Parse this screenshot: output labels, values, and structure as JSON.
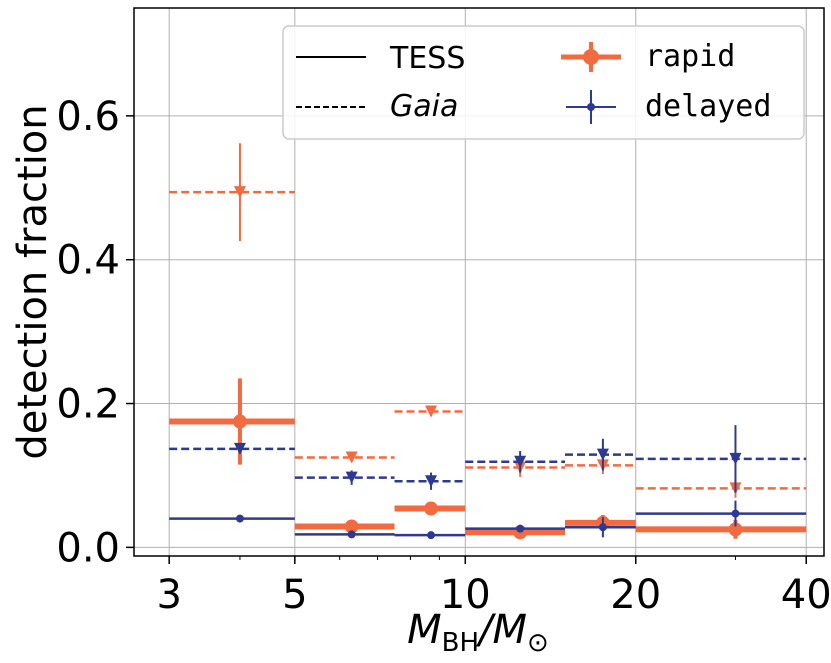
{
  "colors": {
    "rapid": "#f26a40",
    "delayed": "#2e3a8f",
    "grid": "#b0b0b0",
    "axis": "#000000"
  },
  "chart_data": {
    "type": "step-histogram",
    "xscale": "log",
    "xlim": [
      2.6,
      43
    ],
    "ylim": [
      -0.012,
      0.75
    ],
    "xlabel_main": "M",
    "xlabel_sub1": "BH",
    "xlabel_slash": "/M",
    "xlabel_sub2": "⊙",
    "ylabel": "detection fraction",
    "xticks": [
      3,
      5,
      10,
      20,
      40
    ],
    "xtick_labels": [
      "3",
      "5",
      "10",
      "20",
      "40"
    ],
    "yticks": [
      0.0,
      0.2,
      0.4,
      0.6
    ],
    "ytick_labels": [
      "0.0",
      "0.2",
      "0.4",
      "0.6"
    ],
    "grid": true,
    "legend": {
      "position": "top-right",
      "entries": [
        {
          "label": "TESS",
          "style": "solid-line"
        },
        {
          "label": "rapid",
          "style": "rapid-marker"
        },
        {
          "label": "Gaia",
          "style": "dashed-line"
        },
        {
          "label": "delayed",
          "style": "delayed-marker"
        }
      ]
    },
    "series": [
      {
        "name": "rapid TESS",
        "model": "rapid",
        "survey": "TESS",
        "bins": [
          [
            3,
            5
          ],
          [
            5,
            7.5
          ],
          [
            7.5,
            10
          ],
          [
            10,
            15
          ],
          [
            15,
            20
          ],
          [
            20,
            40
          ]
        ],
        "values": [
          0.175,
          0.029,
          0.054,
          0.021,
          0.034,
          0.025
        ],
        "errors": [
          0.06,
          0.006,
          0.007,
          0.004,
          0.011,
          0.013
        ],
        "x_centers": [
          4,
          6.3,
          8.7,
          12.5,
          17.5,
          30
        ]
      },
      {
        "name": "delayed TESS",
        "model": "delayed",
        "survey": "TESS",
        "bins": [
          [
            3,
            5
          ],
          [
            5,
            7.5
          ],
          [
            7.5,
            10
          ],
          [
            10,
            15
          ],
          [
            15,
            20
          ],
          [
            20,
            40
          ]
        ],
        "values": [
          0.04,
          0.018,
          0.017,
          0.026,
          0.028,
          0.047
        ],
        "errors": [
          0.002,
          0.002,
          0.002,
          0.004,
          0.014,
          0.018
        ],
        "x_centers": [
          4,
          6.3,
          8.7,
          12.5,
          17.5,
          30
        ]
      },
      {
        "name": "rapid Gaia",
        "model": "rapid",
        "survey": "Gaia",
        "bins": [
          [
            3,
            5
          ],
          [
            5,
            7.5
          ],
          [
            7.5,
            10
          ],
          [
            10,
            15
          ],
          [
            15,
            20
          ],
          [
            20,
            40
          ]
        ],
        "values": [
          0.494,
          0.125,
          0.189,
          0.111,
          0.114,
          0.082
        ],
        "errors": [
          0.068,
          0.006,
          0.006,
          0.013,
          0.012,
          0.013
        ],
        "x_centers": [
          4,
          6.3,
          8.7,
          12.5,
          17.5,
          30
        ]
      },
      {
        "name": "delayed Gaia",
        "model": "delayed",
        "survey": "Gaia",
        "bins": [
          [
            3,
            5
          ],
          [
            5,
            7.5
          ],
          [
            7.5,
            10
          ],
          [
            10,
            15
          ],
          [
            15,
            20
          ],
          [
            20,
            40
          ]
        ],
        "values": [
          0.137,
          0.097,
          0.092,
          0.119,
          0.129,
          0.123
        ],
        "errors": [
          0.006,
          0.01,
          0.012,
          0.015,
          0.022,
          0.047
        ],
        "x_centers": [
          4,
          6.3,
          8.7,
          12.5,
          17.5,
          30
        ]
      }
    ]
  }
}
